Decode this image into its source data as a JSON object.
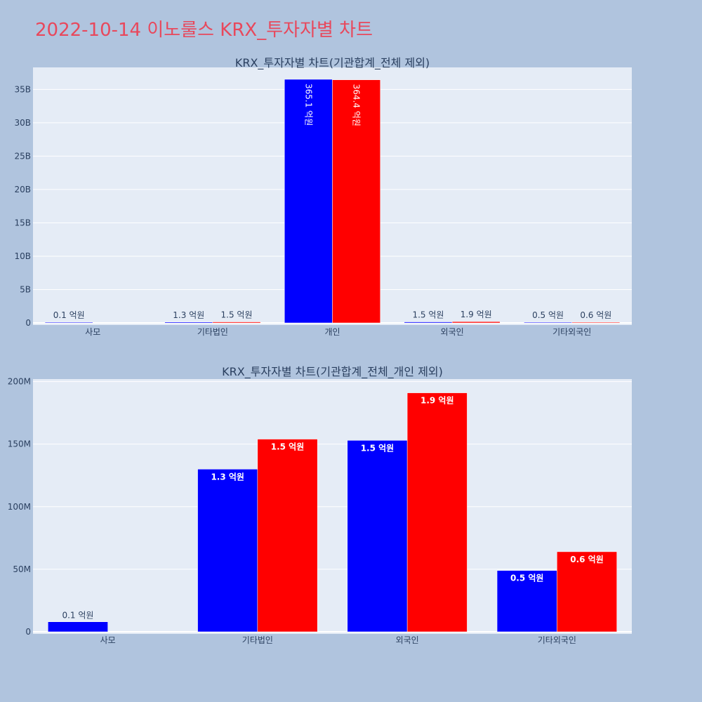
{
  "page_title": "2022-10-14 이노룰스 KRX_투자자별 차트",
  "colors": {
    "background": "#b0c4de",
    "plot_bg": "#e5ecf6",
    "title": "#e8485c",
    "buy": "#0000ff",
    "sell": "#ff0000",
    "text": "#2a3f5f"
  },
  "chart_data": [
    {
      "type": "bar",
      "title": "KRX_투자자별 차트(기관합계_전체 제외)",
      "categories": [
        "사모",
        "기타법인",
        "개인",
        "외국인",
        "기타외국인"
      ],
      "yticks": [
        0,
        5,
        10,
        15,
        20,
        25,
        30,
        35
      ],
      "ytick_labels": [
        "0",
        "5B",
        "10B",
        "15B",
        "20B",
        "25B",
        "30B",
        "35B"
      ],
      "ylim": [
        0,
        38.3
      ],
      "label_position": "outside-except-large",
      "grid": true,
      "legend": "none",
      "series": [
        {
          "color": "#0000ff",
          "values": [
            0.01,
            0.13,
            36.51,
            0.15,
            0.05
          ],
          "labels": [
            "0.1 억원",
            "1.3 억원",
            "365.1 억원",
            "1.5 억원",
            "0.5 억원"
          ]
        },
        {
          "color": "#ff0000",
          "values": [
            null,
            0.15,
            36.44,
            0.19,
            0.06
          ],
          "labels": [
            null,
            "1.5 억원",
            "364.4 억원",
            "1.9 억원",
            "0.6 억원"
          ]
        }
      ]
    },
    {
      "type": "bar",
      "title": "KRX_투자자별 차트(기관합계_전체_개인 제외)",
      "categories": [
        "사모",
        "기타법인",
        "외국인",
        "기타외국인"
      ],
      "yticks": [
        0,
        50,
        100,
        150,
        200
      ],
      "ytick_labels": [
        "0",
        "50M",
        "100M",
        "150M",
        "200M"
      ],
      "ylim": [
        0,
        202
      ],
      "label_position": "inside-except-small",
      "grid": true,
      "legend": "none",
      "series": [
        {
          "color": "#0000ff",
          "values": [
            8,
            130,
            153,
            49
          ],
          "labels": [
            "0.1 억원",
            "1.3 억원",
            "1.5 억원",
            "0.5 억원"
          ]
        },
        {
          "color": "#ff0000",
          "values": [
            null,
            154,
            191,
            64
          ],
          "labels": [
            null,
            "1.5 억원",
            "1.9 억원",
            "0.6 억원"
          ]
        }
      ]
    }
  ]
}
